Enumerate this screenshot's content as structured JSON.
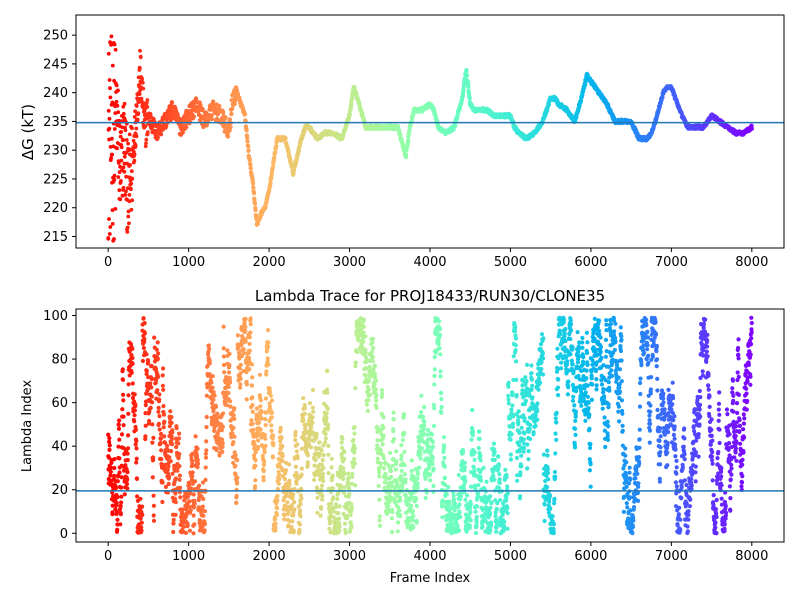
{
  "chart_data": [
    {
      "type": "scatter",
      "title": "",
      "xlabel": "",
      "ylabel": "ΔG (kT)",
      "xlim": [
        -400,
        8400
      ],
      "ylim": [
        213,
        253.5
      ],
      "xticks": [
        0,
        1000,
        2000,
        3000,
        4000,
        5000,
        6000,
        7000,
        8000
      ],
      "xtick_labels": [
        "0",
        "1000",
        "2000",
        "3000",
        "4000",
        "5000",
        "6000",
        "7000",
        "8000"
      ],
      "yticks": [
        215,
        220,
        225,
        230,
        235,
        240,
        245,
        250
      ],
      "ytick_labels": [
        "215",
        "220",
        "225",
        "230",
        "235",
        "240",
        "245",
        "250"
      ],
      "hline": 234.8,
      "hline_color": "#1f77b4",
      "colormap": "rainbow (red at frame 0 → violet at frame 8000)",
      "grid": false,
      "series": [
        {
          "x": [
            0,
            20,
            40,
            60,
            80,
            100,
            150,
            200,
            250,
            300,
            350,
            400,
            450,
            500,
            600,
            700,
            800,
            900,
            1000,
            1100,
            1200,
            1300,
            1400,
            1500,
            1550,
            1600,
            1650,
            1700,
            1750,
            1800,
            1850,
            1900,
            1950,
            2000,
            2100,
            2200,
            2300,
            2400,
            2450,
            2500,
            2600,
            2700,
            2800,
            2900,
            3000,
            3050,
            3100,
            3200,
            3300,
            3400,
            3500,
            3600,
            3700,
            3750,
            3800,
            3900,
            4000,
            4050,
            4100,
            4200,
            4300,
            4400,
            4450,
            4500,
            4550,
            4600,
            4700,
            4800,
            4900,
            5000,
            5050,
            5100,
            5200,
            5300,
            5400,
            5500,
            5550,
            5600,
            5700,
            5800,
            5900,
            5950,
            6000,
            6100,
            6200,
            6300,
            6400,
            6500,
            6600,
            6700,
            6750,
            6800,
            6900,
            6950,
            7000,
            7100,
            7200,
            7300,
            7400,
            7500,
            7600,
            7700,
            7800,
            7900,
            8000
          ],
          "y": [
            250,
            230,
            240,
            220,
            245,
            238,
            226,
            232,
            222,
            228,
            236,
            244,
            234,
            236,
            233,
            235,
            237,
            234,
            236,
            238,
            235,
            237,
            236,
            233,
            239,
            240,
            238,
            236,
            229,
            224,
            217,
            219,
            220,
            223,
            232,
            232,
            226,
            232,
            234,
            234,
            232,
            233,
            233,
            232,
            236,
            241,
            239,
            234,
            234,
            234,
            234,
            234,
            229,
            234,
            237,
            237,
            238,
            237,
            234,
            233,
            234,
            239,
            244,
            238,
            237,
            237,
            237,
            236,
            236,
            236,
            234,
            233,
            232,
            233,
            235,
            239,
            239,
            238,
            237,
            235,
            240,
            243,
            242,
            240,
            238,
            235,
            235,
            235,
            232,
            232,
            233,
            235,
            240,
            241,
            241,
            237,
            234,
            234,
            234,
            236,
            235,
            234,
            233,
            233,
            234
          ]
        }
      ]
    },
    {
      "type": "scatter",
      "title": "Lambda Trace for PROJ18433/RUN30/CLONE35",
      "xlabel": "Frame Index",
      "ylabel": "Lambda Index",
      "xlim": [
        -400,
        8400
      ],
      "ylim": [
        -4,
        103
      ],
      "xticks": [
        0,
        1000,
        2000,
        3000,
        4000,
        5000,
        6000,
        7000,
        8000
      ],
      "xtick_labels": [
        "0",
        "1000",
        "2000",
        "3000",
        "4000",
        "5000",
        "6000",
        "7000",
        "8000"
      ],
      "yticks": [
        0,
        20,
        40,
        60,
        80,
        100
      ],
      "ytick_labels": [
        "0",
        "20",
        "40",
        "60",
        "80",
        "100"
      ],
      "hline": 19.5,
      "hline_color": "#1f77b4",
      "colormap": "rainbow (red at frame 0 → violet at frame 8000)",
      "grid": false,
      "series": [
        {
          "x_range": [
            0,
            8000
          ],
          "y_range": [
            0,
            99
          ],
          "point_count": 8000,
          "description": "lambda index random-walks between 0 and 99 across all frames"
        }
      ]
    }
  ]
}
